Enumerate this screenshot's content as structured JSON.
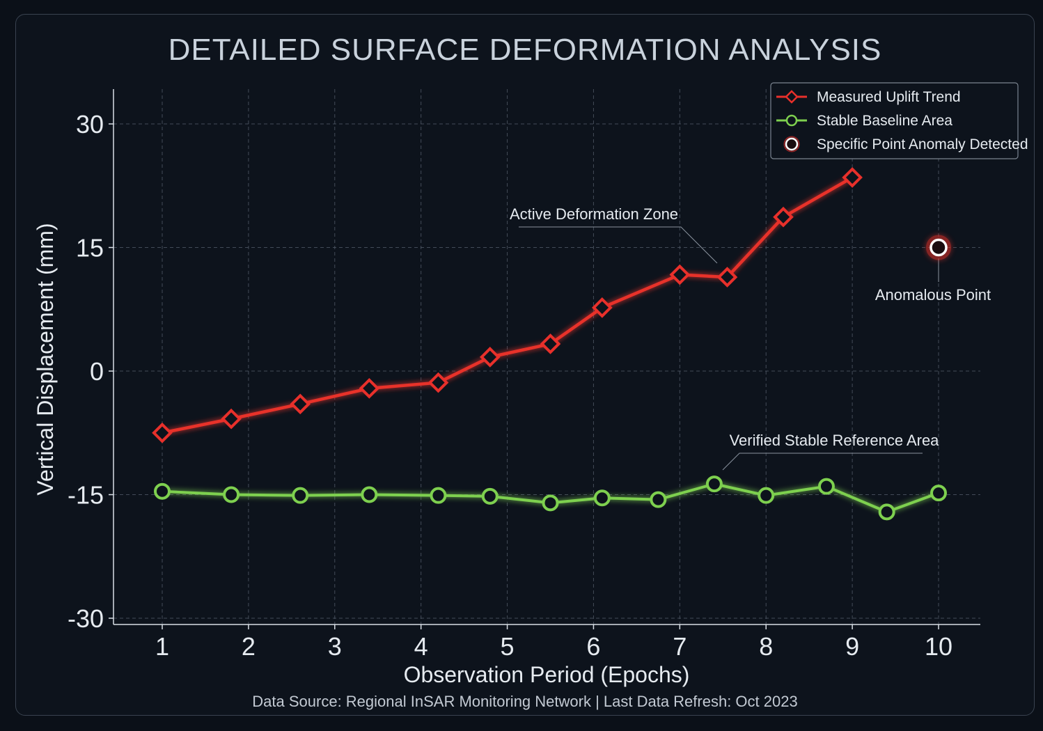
{
  "colors": {
    "uplift": "#e8302b",
    "baseline": "#7ed04f",
    "anomaly_fill": "#1a0d10",
    "anomaly_stroke": "#ffffff",
    "grid": "#5a6472",
    "background": "#0d131c"
  },
  "chart_data": {
    "type": "line",
    "title": "DETAILED SURFACE DEFORMATION ANALYSIS",
    "xlabel": "Observation Period (Epochs)",
    "ylabel": "Vertical Displacement (mm)",
    "xlim": [
      0.45,
      10.5
    ],
    "ylim": [
      -31,
      34
    ],
    "xticks": [
      1,
      2,
      3,
      4,
      5,
      6,
      7,
      8,
      9,
      10
    ],
    "yticks": [
      30,
      15,
      0,
      -15,
      -30
    ],
    "grid": true,
    "legend_position": "top-right",
    "series": [
      {
        "name": "Measured Uplift Trend",
        "marker": "diamond",
        "x": [
          1,
          1.8,
          2.6,
          3.4,
          4.2,
          4.8,
          5.5,
          6.1,
          7.0,
          7.55,
          8.2,
          9.0
        ],
        "y": [
          -7.5,
          -5.8,
          -4.0,
          -2.1,
          -1.4,
          1.7,
          3.3,
          7.7,
          11.7,
          11.4,
          18.7,
          23.5
        ]
      },
      {
        "name": "Stable Baseline Area",
        "marker": "circle",
        "x": [
          1,
          1.8,
          2.6,
          3.4,
          4.2,
          4.8,
          5.5,
          6.1,
          6.75,
          7.4,
          8.0,
          8.7,
          9.4,
          10.0
        ],
        "y": [
          -14.6,
          -15.0,
          -15.1,
          -15.0,
          -15.1,
          -15.2,
          -16.0,
          -15.4,
          -15.6,
          -13.7,
          -15.1,
          -14.0,
          -17.1,
          -14.8
        ]
      },
      {
        "name": "Specific Point Anomaly Detected",
        "marker": "ring",
        "x": [
          10
        ],
        "y": [
          15
        ]
      }
    ],
    "annotations": [
      {
        "text": "Active Deformation Zone",
        "x": 7.4,
        "y": 13
      },
      {
        "text": "Anomalous Point",
        "x": 10,
        "y": 15
      },
      {
        "text": "Verified Stable Reference Area",
        "x": 7.5,
        "y": -12.3
      }
    ],
    "footer": "Data Source: Regional InSAR Monitoring Network | Last Data Refresh: Oct 2023"
  }
}
